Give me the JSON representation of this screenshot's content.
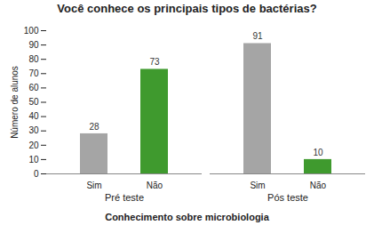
{
  "chart_data": {
    "type": "bar",
    "title": "Você conhece os principais tipos de bactérias?",
    "x_label": "Conhecimento sobre microbiologia",
    "y_label": "Número de alunos",
    "categories": [
      "Pré teste",
      "Pós teste"
    ],
    "series": [
      {
        "name": "Sim",
        "color": "#a5a5a5",
        "values": [
          28,
          91
        ]
      },
      {
        "name": "Não",
        "color": "#3f9a2e",
        "values": [
          73,
          10
        ]
      }
    ],
    "ylim": [
      0,
      100
    ],
    "yticks": [
      0,
      10,
      20,
      30,
      40,
      50,
      60,
      70,
      80,
      90,
      100
    ],
    "data_labels": true,
    "grid": false
  }
}
